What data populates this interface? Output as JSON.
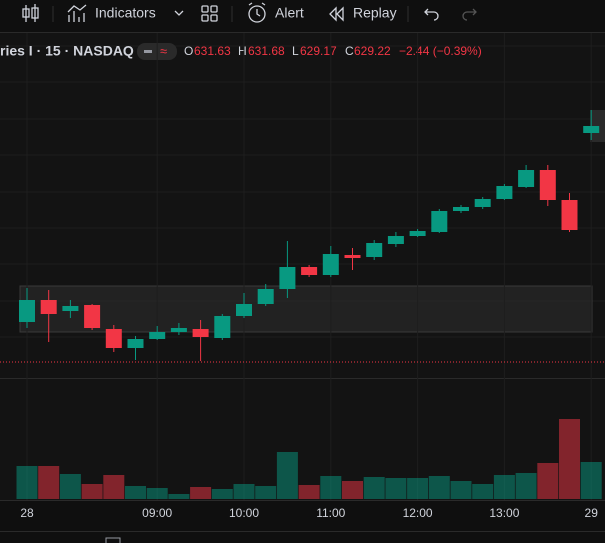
{
  "toolbar": {
    "indicators": "Indicators",
    "alert": "Alert",
    "replay": "Replay"
  },
  "chart_data": {
    "type": "candlestick",
    "symbol": "ries I · 15 · NASDAQ",
    "legend": {
      "o_label": "O",
      "o": "631.63",
      "h_label": "H",
      "h": "631.68",
      "l_label": "L",
      "l": "629.17",
      "c_label": "C",
      "c": "629.22",
      "change": "−2.44 (−0.39%)"
    },
    "categories": [
      "28",
      null,
      null,
      null,
      null,
      null,
      "09:00",
      null,
      null,
      null,
      "10:00",
      null,
      null,
      null,
      "11:00",
      null,
      null,
      null,
      "12:00",
      null,
      null,
      null,
      "13:00",
      null,
      null,
      null,
      "29"
    ],
    "open": [
      622.24,
      624.0,
      623.12,
      623.6,
      621.68,
      620.16,
      620.88,
      621.44,
      621.68,
      620.96,
      622.72,
      623.68,
      624.88,
      626.64,
      626.0,
      627.6,
      627.44,
      628.48,
      629.12,
      629.44,
      631.12,
      631.44,
      632.08,
      633.04,
      634.4,
      632.0,
      637.36
    ],
    "high": [
      624.96,
      624.8,
      624.0,
      623.68,
      622.0,
      621.12,
      621.92,
      622.16,
      622.4,
      622.88,
      624.56,
      625.28,
      628.72,
      626.8,
      628.32,
      628.16,
      628.8,
      629.44,
      629.68,
      631.28,
      631.6,
      632.24,
      633.28,
      634.8,
      634.8,
      632.56,
      639.2
    ],
    "low": [
      621.76,
      620.64,
      622.56,
      621.6,
      619.84,
      619.2,
      620.8,
      621.2,
      619.12,
      620.8,
      622.56,
      623.52,
      624.16,
      625.84,
      625.84,
      626.4,
      627.2,
      628.24,
      629.04,
      629.36,
      630.96,
      631.28,
      632.0,
      632.96,
      631.52,
      629.44,
      636.8
    ],
    "close": [
      624.0,
      622.88,
      623.52,
      621.76,
      620.16,
      620.88,
      621.44,
      621.76,
      621.04,
      622.72,
      623.68,
      624.88,
      626.64,
      626.0,
      627.68,
      627.36,
      628.56,
      629.12,
      629.52,
      631.12,
      631.44,
      632.08,
      633.12,
      634.4,
      632.0,
      629.6,
      637.92
    ],
    "volume": [
      33,
      33,
      25,
      15,
      24,
      13,
      11,
      5,
      12,
      10,
      15,
      13,
      47,
      14,
      23,
      18,
      22,
      21,
      21,
      23,
      18,
      15,
      24,
      26,
      36,
      80,
      37
    ],
    "ylim": [
      618.0,
      645.2
    ],
    "vlim": [
      0,
      120
    ],
    "up_color": "#089981",
    "down_color": "#f23645",
    "price_line": 619.04
  }
}
